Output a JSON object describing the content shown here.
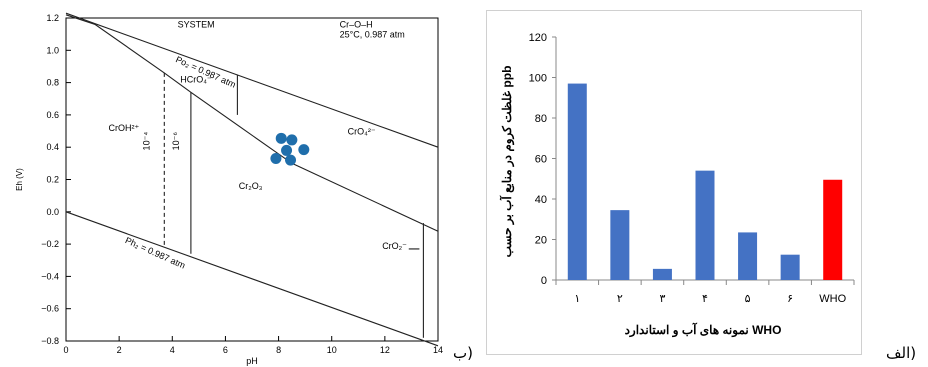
{
  "captions": {
    "left": "ب)",
    "right": "الف)"
  },
  "chart_data": [
    {
      "type": "line",
      "title": "",
      "xlabel": "pH",
      "ylabel": "Eh (V)",
      "xlim": [
        0,
        14
      ],
      "ylim": [
        -0.8,
        1.2
      ],
      "x_ticks": [
        0,
        2,
        4,
        6,
        8,
        10,
        12,
        14
      ],
      "y_ticks": [
        -0.8,
        -0.6,
        -0.4,
        -0.2,
        0.0,
        0.2,
        0.4,
        0.6,
        0.8,
        1.0,
        1.2
      ],
      "x_tick_labels": [
        "0",
        "2",
        "4",
        "6",
        "8",
        "10",
        "12",
        "14"
      ],
      "y_tick_labels": [
        "−0.8",
        "−0.6",
        "−0.4",
        "−0.2",
        "0.0",
        "0.2",
        "0.4",
        "0.6",
        "0.8",
        "1.0",
        "1.2"
      ],
      "system_label": "SYSTEM",
      "system_name": "Cr–O–H",
      "conditions": "25°C, 0.987 atm",
      "series": [
        {
          "values": [
            [
              0,
              1.23
            ],
            [
              14,
              0.4
            ]
          ],
          "style": "solid"
        },
        {
          "values": [
            [
              0,
              0.0
            ],
            [
              14,
              -0.83
            ]
          ],
          "style": "solid"
        },
        {
          "values": [
            [
              0,
              1.22
            ],
            [
              1.1,
              1.16
            ],
            [
              3.7,
              0.86
            ],
            [
              4.7,
              0.74
            ],
            [
              8.5,
              0.3
            ],
            [
              14,
              -0.12
            ]
          ],
          "style": "solid"
        },
        {
          "values": [
            [
              3.7,
              0.86
            ],
            [
              3.7,
              -0.22
            ]
          ],
          "style": "dashed"
        },
        {
          "values": [
            [
              4.7,
              0.74
            ],
            [
              4.7,
              -0.26
            ]
          ],
          "style": "solid"
        },
        {
          "values": [
            [
              6.45,
              0.85
            ],
            [
              6.45,
              0.6
            ]
          ],
          "style": "solid"
        },
        {
          "values": [
            [
              13.45,
              -0.07
            ],
            [
              13.45,
              -0.78
            ]
          ],
          "style": "solid"
        }
      ],
      "points": [
        [
          8.1,
          0.455
        ],
        [
          8.5,
          0.445
        ],
        [
          7.9,
          0.33
        ],
        [
          8.45,
          0.32
        ],
        [
          8.95,
          0.385
        ],
        [
          8.3,
          0.38
        ]
      ],
      "point_color": "#1f6eab",
      "annotations": [
        {
          "text": "Po₂ = 0.987 atm",
          "x": 4.1,
          "y": 0.93,
          "angle": 24
        },
        {
          "text": "HCrO₄⁻",
          "x": 4.3,
          "y": 0.8,
          "angle": 0
        },
        {
          "text": "CrOH²⁺",
          "x": 1.6,
          "y": 0.5,
          "angle": 0
        },
        {
          "text": "CrO₄²⁻",
          "x": 10.6,
          "y": 0.48,
          "angle": 0
        },
        {
          "text": "Cr₂O₃",
          "x": 6.5,
          "y": 0.14,
          "angle": 0
        },
        {
          "text": "CrO₂⁻",
          "x": 11.9,
          "y": -0.23,
          "angle": 0
        },
        {
          "text": "Ph₂ = 0.987 atm",
          "x": 2.2,
          "y": -0.19,
          "angle": 24
        },
        {
          "text": "10⁻⁴",
          "x": 3.15,
          "y": 0.38,
          "angle": -90
        },
        {
          "text": "10⁻⁶",
          "x": 4.25,
          "y": 0.38,
          "angle": -90
        }
      ]
    },
    {
      "type": "bar",
      "title": "",
      "xlabel": "نمونه های آب و استاندارد WHO",
      "ylabel": "غلظت کروم در منابع آب بر حسب ppb",
      "categories": [
        "۱",
        "۲",
        "۳",
        "۴",
        "۵",
        "۶",
        "WHO"
      ],
      "values": [
        97,
        34.5,
        5.5,
        54,
        23.5,
        12.5,
        49.5
      ],
      "colors": [
        "#4472c4",
        "#4472c4",
        "#4472c4",
        "#4472c4",
        "#4472c4",
        "#4472c4",
        "#ff0000"
      ],
      "ylim": [
        0,
        120
      ],
      "y_ticks": [
        0,
        20,
        40,
        60,
        80,
        100,
        120
      ]
    }
  ]
}
